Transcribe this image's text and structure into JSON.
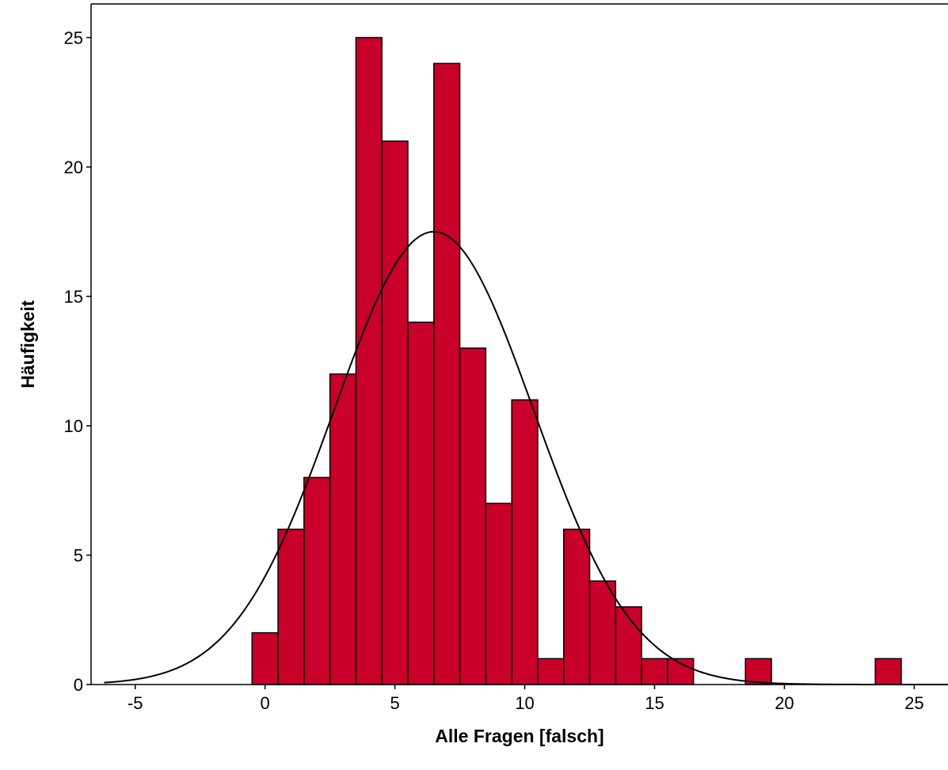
{
  "chart_data": {
    "type": "bar",
    "subtype": "histogram",
    "xlabel": "Alle Fragen [falsch]",
    "ylabel": "Häufigkeit",
    "xlim": [
      -6.7,
      26.3
    ],
    "ylim": [
      0,
      26.3
    ],
    "xticks": [
      -5,
      0,
      5,
      10,
      15,
      20,
      25
    ],
    "yticks": [
      0,
      5,
      10,
      15,
      20,
      25
    ],
    "bin_width": 1,
    "bins": [
      {
        "x": 0,
        "count": 2
      },
      {
        "x": 1,
        "count": 6
      },
      {
        "x": 2,
        "count": 8
      },
      {
        "x": 3,
        "count": 12
      },
      {
        "x": 4,
        "count": 25
      },
      {
        "x": 5,
        "count": 21
      },
      {
        "x": 6,
        "count": 14
      },
      {
        "x": 7,
        "count": 24
      },
      {
        "x": 8,
        "count": 13
      },
      {
        "x": 9,
        "count": 7
      },
      {
        "x": 10,
        "count": 11
      },
      {
        "x": 11,
        "count": 1
      },
      {
        "x": 12,
        "count": 6
      },
      {
        "x": 13,
        "count": 4
      },
      {
        "x": 14,
        "count": 3
      },
      {
        "x": 15,
        "count": 1
      },
      {
        "x": 16,
        "count": 1
      },
      {
        "x": 19,
        "count": 1
      },
      {
        "x": 24,
        "count": 1
      }
    ],
    "normal_curve": {
      "mean": 6.5,
      "sd": 3.84,
      "peak": 17.5
    },
    "bar_color": "#C8002A",
    "bar_edge_color": "#000000",
    "curve_color": "#000000",
    "grid": false,
    "legend": "none"
  }
}
